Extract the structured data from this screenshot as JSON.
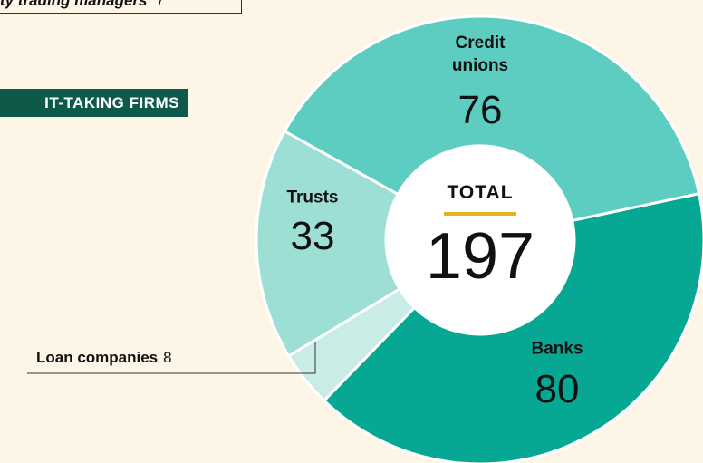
{
  "chart_data": {
    "type": "donut",
    "section_label": "IT-TAKING FIRMS",
    "other_item": {
      "label": "ty trading managers",
      "value": 7
    },
    "total_label": "TOTAL",
    "total": 197,
    "categories": [
      "Banks",
      "Loan companies",
      "Trusts",
      "Credit unions"
    ],
    "values": [
      80,
      8,
      33,
      76
    ],
    "colors": [
      "#06a894",
      "#c9ece7",
      "#9ddfd5",
      "#5ccdc0"
    ]
  }
}
